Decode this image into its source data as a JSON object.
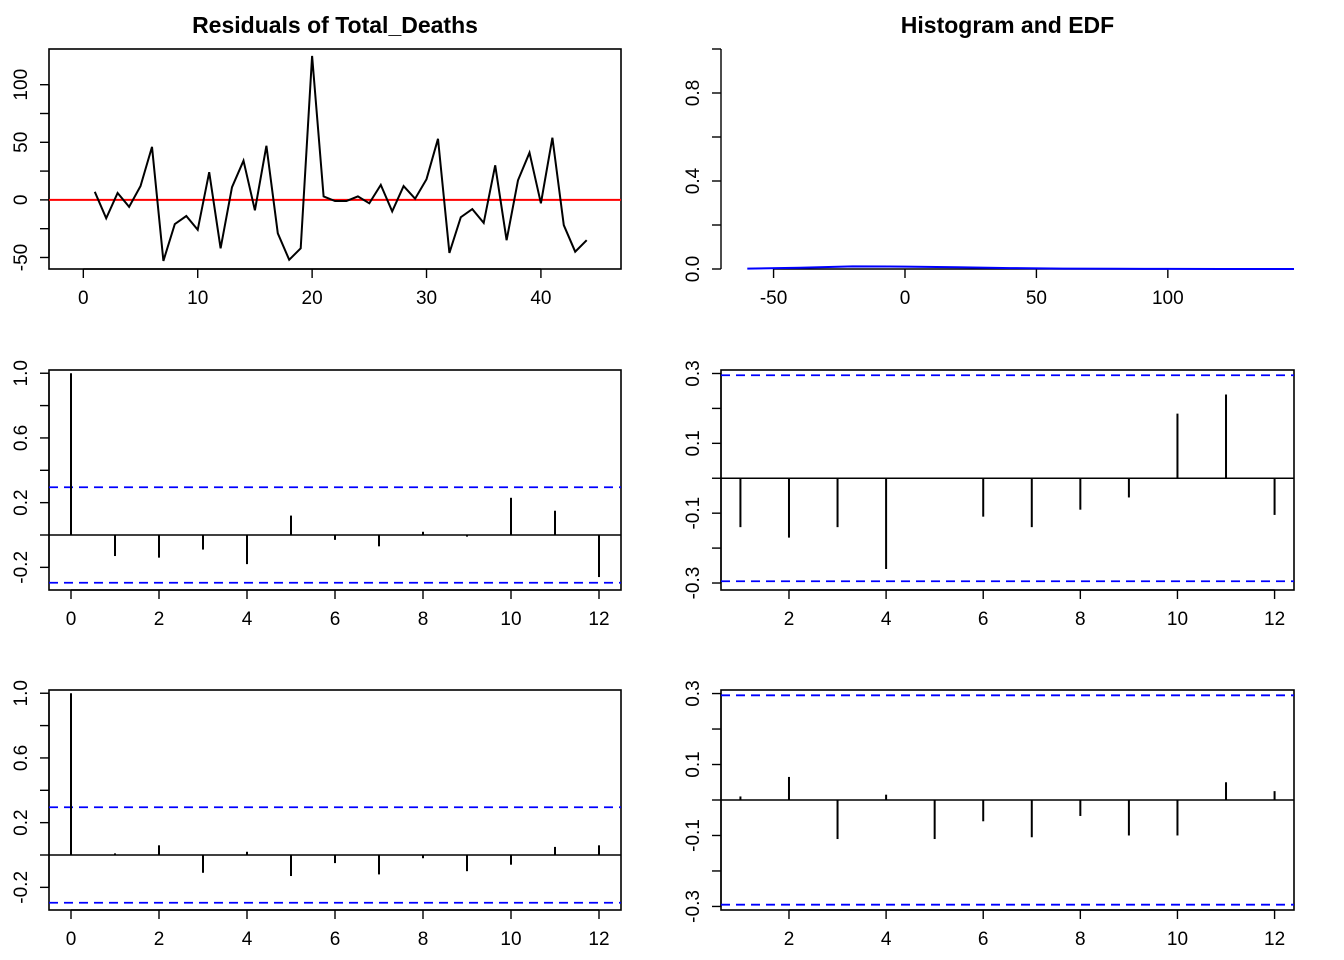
{
  "panels": [
    {
      "id": "residuals",
      "type": "line",
      "title": "Residuals of Total_Deaths",
      "xlim": [
        -3,
        47
      ],
      "ylim": [
        -60,
        131
      ],
      "xticks": [
        0,
        10,
        20,
        30,
        40
      ],
      "yticks": [
        -50,
        0,
        50,
        100
      ],
      "ref_lines": [
        {
          "y": 0,
          "color": "#ff0000",
          "style": "solid"
        }
      ],
      "series": [
        {
          "color": "#000000",
          "x": [
            1,
            2,
            3,
            4,
            5,
            6,
            7,
            8,
            9,
            10,
            11,
            12,
            13,
            14,
            15,
            16,
            17,
            18,
            19,
            20,
            21,
            22,
            23,
            24,
            25,
            26,
            27,
            28,
            29,
            30,
            31,
            32,
            33,
            34,
            35,
            36,
            37,
            38,
            39,
            40,
            41,
            42,
            43,
            44
          ],
          "values": [
            7,
            -16,
            6,
            -6,
            12,
            46,
            -53,
            -21,
            -14,
            -26,
            24,
            -42,
            11,
            34,
            -9,
            47,
            -29,
            -52,
            -42,
            125,
            3,
            -1,
            -1,
            3,
            -3,
            13,
            -10,
            12,
            1,
            18,
            53,
            -46,
            -15,
            -8,
            -20,
            30,
            -35,
            17,
            41,
            -3,
            54,
            -22,
            -45,
            -35
          ]
        }
      ]
    },
    {
      "id": "hist-edf",
      "type": "line",
      "title": "Histogram and EDF",
      "xlim": [
        -70,
        148
      ],
      "ylim": [
        0,
        1
      ],
      "xticks": [
        -50,
        0,
        50,
        100
      ],
      "yticks": [
        0.0,
        0.4,
        0.8
      ],
      "xtick_labels": [
        "-50",
        "0",
        "50",
        "100"
      ],
      "ytick_labels": [
        "0.0",
        "0.4",
        "0.8"
      ],
      "series": [
        {
          "color": "#0000ff",
          "x": [
            -60,
            -40,
            -20,
            0,
            20,
            40,
            60,
            80,
            100,
            120,
            148
          ],
          "values": [
            0.002,
            0.006,
            0.012,
            0.011,
            0.008,
            0.004,
            0.002,
            0.001,
            0.0005,
            0.0002,
            0.0001
          ]
        }
      ]
    },
    {
      "id": "acf-residuals",
      "type": "bar",
      "xlim": [
        -0.5,
        12.5
      ],
      "ylim": [
        -0.34,
        1.02
      ],
      "xticks": [
        0,
        2,
        4,
        6,
        8,
        10,
        12
      ],
      "yticks": [
        -0.2,
        0.2,
        0.6,
        1.0
      ],
      "ytick_labels": [
        "-0.2",
        "0.2",
        "0.6",
        "1.0"
      ],
      "conf": 0.295,
      "x": [
        0,
        1,
        2,
        3,
        4,
        5,
        6,
        7,
        8,
        9,
        10,
        11,
        12
      ],
      "values": [
        1.0,
        -0.13,
        -0.14,
        -0.09,
        -0.18,
        0.12,
        -0.03,
        -0.07,
        0.02,
        -0.01,
        0.23,
        0.15,
        -0.26
      ]
    },
    {
      "id": "pacf-residuals",
      "type": "bar",
      "xlim": [
        0.6,
        12.4
      ],
      "ylim": [
        -0.32,
        0.31
      ],
      "xticks": [
        2,
        4,
        6,
        8,
        10,
        12
      ],
      "yticks": [
        -0.3,
        -0.1,
        0.1,
        0.3
      ],
      "ytick_labels": [
        "-0.3",
        "-0.1",
        "0.1",
        "0.3"
      ],
      "conf": 0.295,
      "x": [
        1,
        2,
        3,
        4,
        5,
        6,
        7,
        8,
        9,
        10,
        11,
        12
      ],
      "values": [
        -0.14,
        -0.17,
        -0.14,
        -0.26,
        0.0,
        -0.11,
        -0.14,
        -0.09,
        -0.055,
        0.185,
        0.24,
        -0.105
      ]
    },
    {
      "id": "acf-squared",
      "type": "bar",
      "xlim": [
        -0.5,
        12.5
      ],
      "ylim": [
        -0.34,
        1.02
      ],
      "xticks": [
        0,
        2,
        4,
        6,
        8,
        10,
        12
      ],
      "yticks": [
        -0.2,
        0.2,
        0.6,
        1.0
      ],
      "ytick_labels": [
        "-0.2",
        "0.2",
        "0.6",
        "1.0"
      ],
      "conf": 0.295,
      "x": [
        0,
        1,
        2,
        3,
        4,
        5,
        6,
        7,
        8,
        9,
        10,
        11,
        12
      ],
      "values": [
        1.0,
        0.01,
        0.06,
        -0.11,
        0.02,
        -0.13,
        -0.05,
        -0.12,
        -0.02,
        -0.1,
        -0.06,
        0.05,
        0.06
      ]
    },
    {
      "id": "pacf-squared",
      "type": "bar",
      "xlim": [
        0.6,
        12.4
      ],
      "ylim": [
        -0.31,
        0.31
      ],
      "xticks": [
        2,
        4,
        6,
        8,
        10,
        12
      ],
      "yticks": [
        -0.3,
        -0.1,
        0.1,
        0.3
      ],
      "ytick_labels": [
        "-0.3",
        "-0.1",
        "0.1",
        "0.3"
      ],
      "conf": 0.295,
      "x": [
        1,
        2,
        3,
        4,
        5,
        6,
        7,
        8,
        9,
        10,
        11,
        12
      ],
      "values": [
        0.01,
        0.065,
        -0.11,
        0.015,
        -0.11,
        -0.06,
        -0.105,
        -0.045,
        -0.1,
        -0.1,
        0.05,
        0.025
      ]
    }
  ]
}
